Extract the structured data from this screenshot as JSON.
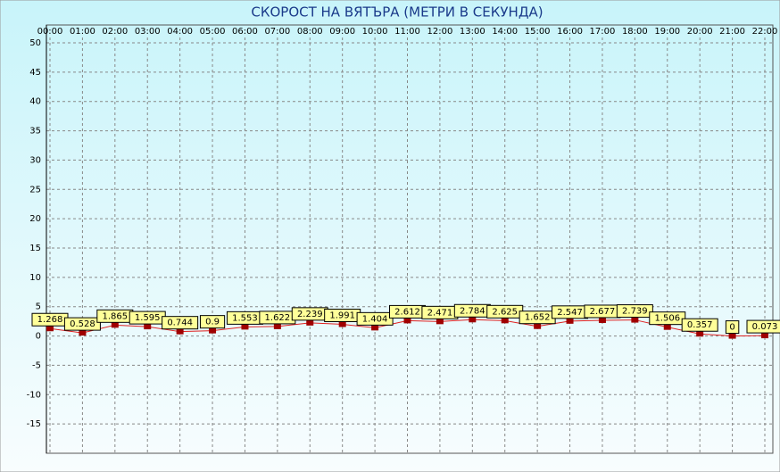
{
  "chart_data": {
    "type": "line",
    "title": "СКОРОСТ НА ВЯТЪРА (МЕТРИ В СЕКУНДА)",
    "categories": [
      "00:00",
      "01:00",
      "02:00",
      "03:00",
      "04:00",
      "05:00",
      "06:00",
      "07:00",
      "08:00",
      "09:00",
      "10:00",
      "11:00",
      "12:00",
      "13:00",
      "14:00",
      "15:00",
      "16:00",
      "17:00",
      "18:00",
      "19:00",
      "20:00",
      "21:00",
      "22:00"
    ],
    "values": [
      1.268,
      0.528,
      1.865,
      1.595,
      0.744,
      0.9,
      1.553,
      1.622,
      2.239,
      1.991,
      1.404,
      2.612,
      2.471,
      2.784,
      2.625,
      1.652,
      2.547,
      2.677,
      2.739,
      1.506,
      0.357,
      0,
      0.073
    ],
    "color": "#e02020",
    "marker_color": "#a00000",
    "label_color": "#ffff99",
    "ylim": [
      -20,
      50
    ],
    "yticks": [
      50,
      45,
      40,
      35,
      30,
      25,
      20,
      15,
      10,
      5,
      0,
      -5,
      -10,
      -15
    ],
    "grid": true
  }
}
